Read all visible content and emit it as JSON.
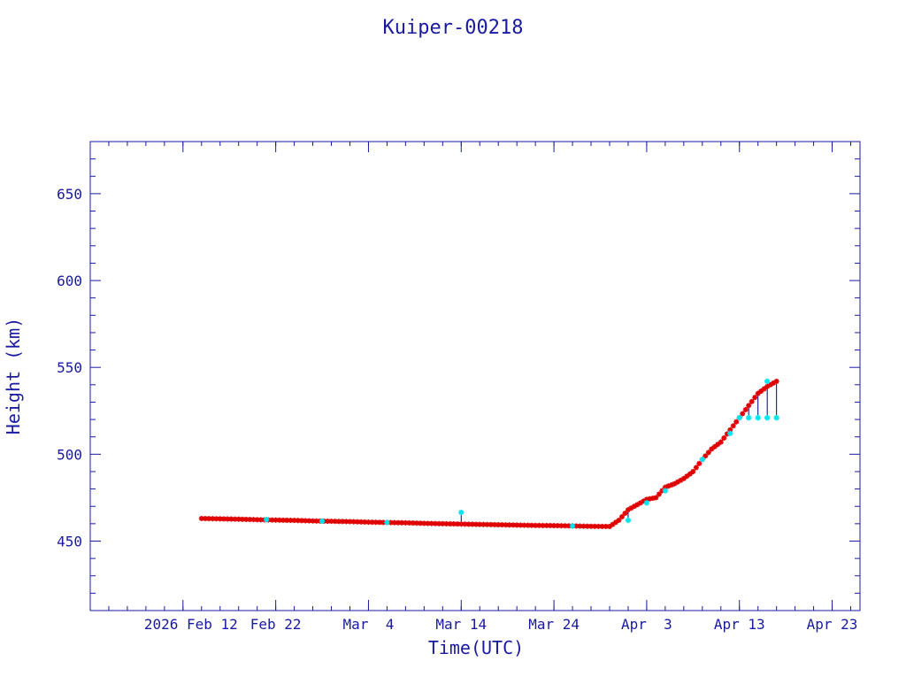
{
  "colors": {
    "axis": "#1a1aa0",
    "text": "#1a1aa0",
    "series_primary": "#e00000",
    "series_secondary": "#00e5ee",
    "connector": "#00008b",
    "background": "#ffffff"
  },
  "chart_data": {
    "type": "scatter",
    "title": "Kuiper-00218",
    "xlabel": "Time(UTC)",
    "ylabel": "Height (km)",
    "xlim": [
      "2026-02-02",
      "2026-04-26"
    ],
    "ylim": [
      410,
      680
    ],
    "grid": false,
    "legend": "none",
    "x_ticks": [
      {
        "date": "2026-02-12",
        "label": "2026 Feb 12"
      },
      {
        "date": "2026-02-22",
        "label": "Feb 22"
      },
      {
        "date": "2026-03-04",
        "label": "Mar  4"
      },
      {
        "date": "2026-03-14",
        "label": "Mar 14"
      },
      {
        "date": "2026-03-24",
        "label": "Mar 24"
      },
      {
        "date": "2026-04-03",
        "label": "Apr  3"
      },
      {
        "date": "2026-04-13",
        "label": "Apr 13"
      },
      {
        "date": "2026-04-23",
        "label": "Apr 23"
      }
    ],
    "y_ticks": [
      450,
      500,
      550,
      600,
      650
    ],
    "series": [
      {
        "marker": "star",
        "color": "#e00000",
        "points": [
          [
            "2026-02-14",
            463
          ],
          [
            "2026-02-16",
            462.8
          ],
          [
            "2026-02-18",
            462.6
          ],
          [
            "2026-02-20",
            462.3
          ],
          [
            "2026-02-22",
            462.1
          ],
          [
            "2026-02-24",
            461.9
          ],
          [
            "2026-02-26",
            461.6
          ],
          [
            "2026-02-28",
            461.4
          ],
          [
            "2026-03-02",
            461.2
          ],
          [
            "2026-03-04",
            460.9
          ],
          [
            "2026-03-06",
            460.7
          ],
          [
            "2026-03-08",
            460.5
          ],
          [
            "2026-03-10",
            460.2
          ],
          [
            "2026-03-12",
            460
          ],
          [
            "2026-03-14",
            459.8
          ],
          [
            "2026-03-16",
            459.6
          ],
          [
            "2026-03-18",
            459.4
          ],
          [
            "2026-03-20",
            459.2
          ],
          [
            "2026-03-22",
            459
          ],
          [
            "2026-03-24",
            458.9
          ],
          [
            "2026-03-26",
            458.7
          ],
          [
            "2026-03-28",
            458.5
          ],
          [
            "2026-03-30",
            458.4
          ],
          [
            "2026-03-31",
            462
          ],
          [
            "2026-04-01",
            468
          ],
          [
            "2026-04-02",
            471
          ],
          [
            "2026-04-03",
            474
          ],
          [
            "2026-04-04",
            475
          ],
          [
            "2026-04-05",
            481
          ],
          [
            "2026-04-06",
            483
          ],
          [
            "2026-04-07",
            486
          ],
          [
            "2026-04-08",
            490
          ],
          [
            "2026-04-09",
            497
          ],
          [
            "2026-04-10",
            503
          ],
          [
            "2026-04-11",
            507
          ],
          [
            "2026-04-12",
            514
          ],
          [
            "2026-04-13",
            521
          ],
          [
            "2026-04-14",
            528
          ],
          [
            "2026-04-15",
            535
          ],
          [
            "2026-04-16",
            539
          ],
          [
            "2026-04-17",
            542
          ]
        ]
      },
      {
        "marker": "star",
        "color": "#00e5ee",
        "points": [
          [
            "2026-02-21",
            462.4
          ],
          [
            "2026-02-27",
            461.5
          ],
          [
            "2026-03-06",
            460.7
          ],
          [
            "2026-03-14",
            466.5
          ],
          [
            "2026-03-26",
            458.7
          ],
          [
            "2026-04-01",
            462
          ],
          [
            "2026-04-03",
            472
          ],
          [
            "2026-04-05",
            479
          ],
          [
            "2026-04-09",
            497
          ],
          [
            "2026-04-12",
            512
          ],
          [
            "2026-04-13",
            521
          ],
          [
            "2026-04-14",
            521
          ],
          [
            "2026-04-15",
            521
          ],
          [
            "2026-04-16",
            521
          ],
          [
            "2026-04-17",
            521
          ],
          [
            "2026-04-16",
            542
          ]
        ]
      }
    ]
  }
}
